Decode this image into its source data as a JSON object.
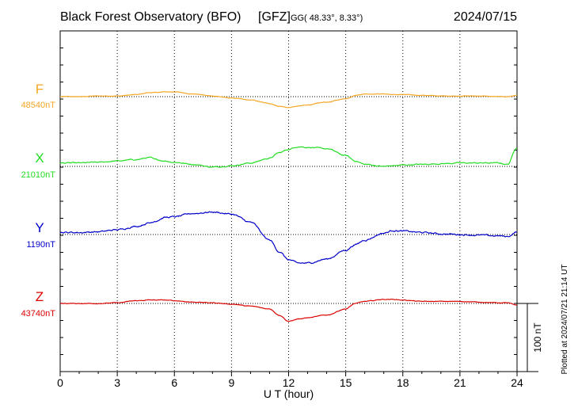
{
  "header": {
    "title": "Black Forest Observatory (BFO)",
    "agency": "[GFZ]",
    "coord_prefix": "GG",
    "coords": "( 48.33°,   8.33°)",
    "date": "2024/07/15"
  },
  "footer": {
    "plotted": "Plotted at 2024/07/21 21:14 UT"
  },
  "scale_bar": {
    "label": "100 nT",
    "value_nT": 100
  },
  "chart_data": {
    "type": "line",
    "title": "Black Forest Observatory (BFO)",
    "xlabel": "U T (hour)",
    "ylabel": "",
    "xlim": [
      0,
      24
    ],
    "xticks": [
      "0",
      "3",
      "6",
      "9",
      "12",
      "15",
      "18",
      "21",
      "24"
    ],
    "grid": true,
    "x": [
      0,
      1,
      2,
      3,
      4,
      4.7,
      5,
      5.5,
      6,
      7,
      8,
      9,
      10,
      11,
      11.5,
      12,
      12.5,
      13,
      14,
      15,
      15.5,
      16,
      17,
      17.5,
      18,
      19,
      20,
      21,
      22,
      23,
      23.5,
      24
    ],
    "series": [
      {
        "name": "F",
        "baseline_label": "48540nT",
        "color": "#f5a623",
        "values": [
          0,
          0,
          1,
          1,
          3,
          6,
          6,
          7,
          7,
          4,
          1,
          -2,
          -5,
          -10,
          -14,
          -16,
          -14,
          -12,
          -8,
          -3,
          2,
          4,
          4,
          3,
          3,
          2,
          1,
          1,
          1,
          0,
          0,
          2
        ]
      },
      {
        "name": "X",
        "baseline_label": "21010nT",
        "color": "#22dd22",
        "values": [
          5,
          5,
          6,
          8,
          10,
          13,
          10,
          8,
          6,
          3,
          -1,
          1,
          5,
          12,
          20,
          25,
          29,
          28,
          26,
          16,
          8,
          3,
          0,
          1,
          2,
          3,
          4,
          5,
          5,
          5,
          3,
          28
        ]
      },
      {
        "name": "Y",
        "baseline_label": "1190nT",
        "color": "#0000cc",
        "values": [
          3,
          3,
          4,
          7,
          12,
          17,
          20,
          25,
          26,
          31,
          33,
          30,
          18,
          -8,
          -25,
          -37,
          -42,
          -42,
          -36,
          -23,
          -15,
          -8,
          2,
          6,
          5,
          3,
          1,
          0,
          -1,
          -2,
          -3,
          4
        ]
      },
      {
        "name": "Z",
        "baseline_label": "43740nT",
        "color": "#dd0000",
        "values": [
          0,
          0,
          0,
          1,
          4,
          5,
          5,
          5,
          4,
          2,
          1,
          -1,
          -4,
          -8,
          -17,
          -26,
          -23,
          -21,
          -17,
          -8,
          0,
          3,
          6,
          6,
          5,
          3,
          3,
          3,
          2,
          1,
          1,
          -3
        ]
      }
    ]
  }
}
